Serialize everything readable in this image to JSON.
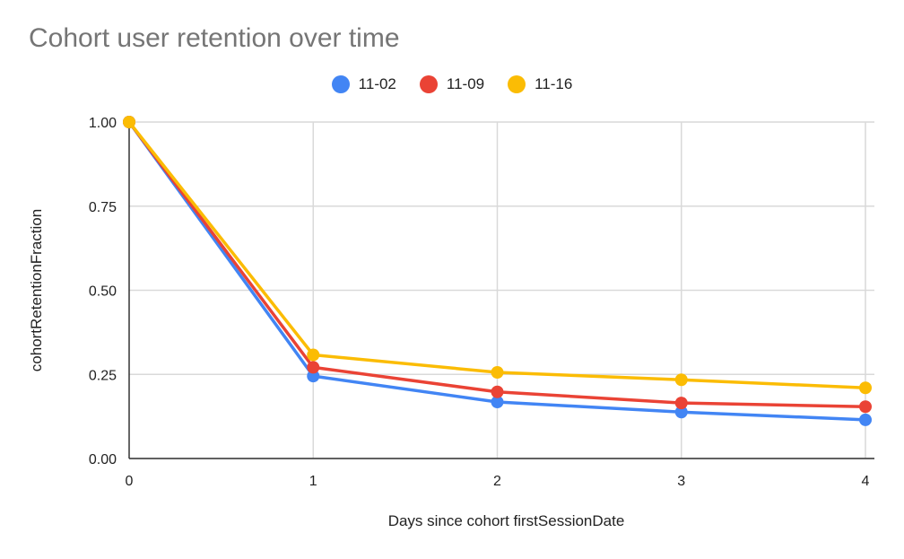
{
  "chart_data": {
    "type": "line",
    "title": "Cohort user retention over time",
    "xlabel": "Days since cohort firstSessionDate",
    "ylabel": "cohortRetentionFraction",
    "x": [
      0,
      1,
      2,
      3,
      4
    ],
    "xticks": [
      "0",
      "1",
      "2",
      "3",
      "4"
    ],
    "yticks": [
      "0.00",
      "0.25",
      "0.50",
      "0.75",
      "1.00"
    ],
    "xlim": [
      0,
      4
    ],
    "ylim": [
      0,
      1
    ],
    "grid": true,
    "legend_position": "top",
    "series": [
      {
        "name": "11-02",
        "color": "#4285F4",
        "values": [
          1.0,
          0.245,
          0.168,
          0.138,
          0.115
        ]
      },
      {
        "name": "11-09",
        "color": "#EA4335",
        "values": [
          1.0,
          0.271,
          0.198,
          0.165,
          0.154
        ]
      },
      {
        "name": "11-16",
        "color": "#FBBC04",
        "values": [
          1.0,
          0.308,
          0.256,
          0.234,
          0.21
        ]
      }
    ]
  }
}
